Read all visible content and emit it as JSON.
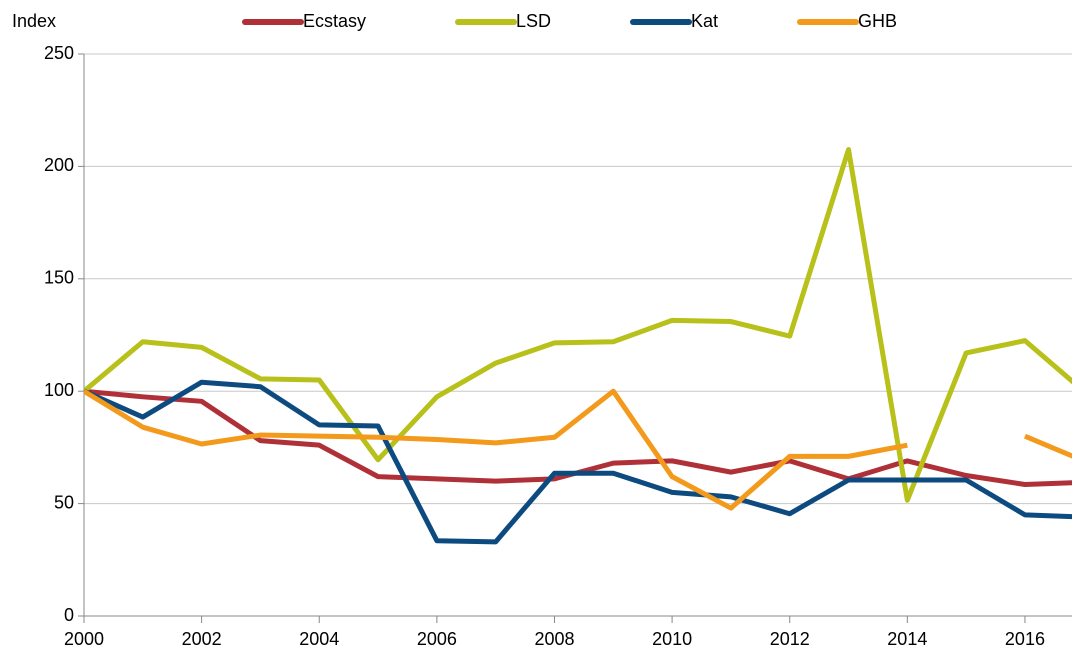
{
  "chart_data": {
    "type": "line",
    "ylabel": "Index",
    "x": [
      2000,
      2001,
      2002,
      2003,
      2004,
      2005,
      2006,
      2007,
      2008,
      2009,
      2010,
      2011,
      2012,
      2013,
      2014,
      2015,
      2016,
      2017
    ],
    "series": [
      {
        "name": "Ecstasy",
        "color": "#b03038",
        "values": [
          100,
          97.5,
          95.5,
          78,
          76,
          62,
          61,
          60,
          61,
          68,
          69,
          64,
          69,
          61,
          69,
          62.5,
          58.5,
          59.5
        ]
      },
      {
        "name": "LSD",
        "color": "#b8c01a",
        "values": [
          100,
          122,
          119.5,
          105.5,
          105,
          69.5,
          97.5,
          112.5,
          121.5,
          122,
          131.5,
          131,
          124.5,
          207.5,
          51.5,
          117,
          122.5,
          100
        ]
      },
      {
        "name": "Kat",
        "color": "#0c4a80",
        "values": [
          100,
          88.5,
          104,
          102,
          85,
          84.5,
          33.5,
          33,
          63.5,
          63.5,
          55,
          53,
          45.5,
          60.5,
          60.5,
          60.5,
          45,
          44
        ]
      },
      {
        "name": "GHB",
        "color": "#f39a1c",
        "values": [
          100,
          84,
          76.5,
          80.5,
          80,
          79.5,
          78.5,
          77,
          79.5,
          100,
          62,
          48,
          71,
          71,
          76,
          null,
          80,
          69
        ]
      }
    ],
    "xlim": [
      2000,
      2016.8
    ],
    "xticks": [
      2000,
      2002,
      2004,
      2006,
      2008,
      2010,
      2012,
      2014,
      2016
    ],
    "ylim": [
      0,
      250
    ],
    "yticks": [
      0,
      50,
      100,
      150,
      200,
      250
    ],
    "grid": true,
    "legend": "top"
  }
}
